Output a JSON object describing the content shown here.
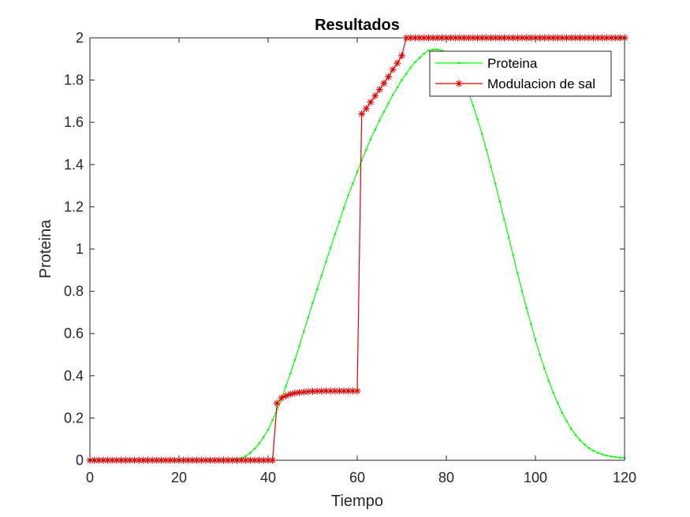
{
  "chart_data": {
    "type": "line",
    "title": "Resultados",
    "xlabel": "Tiempo",
    "ylabel": "Proteina",
    "xlim": [
      0,
      120
    ],
    "ylim": [
      0,
      2
    ],
    "xticks": [
      0,
      20,
      40,
      60,
      80,
      100,
      120
    ],
    "yticks": [
      0,
      0.2,
      0.4,
      0.6,
      0.8,
      1,
      1.2,
      1.4,
      1.6,
      1.8,
      2
    ],
    "xtick_labels": [
      "0",
      "20",
      "40",
      "60",
      "80",
      "100",
      "120"
    ],
    "ytick_labels": [
      "0",
      "0.2",
      "0.4",
      "0.6",
      "0.8",
      "1",
      "1.2",
      "1.4",
      "1.6",
      "1.8",
      "2"
    ],
    "grid": false,
    "legend_position": "top-right",
    "series": [
      {
        "name": "Proteina",
        "color": "#00ff00",
        "marker": "dot",
        "x": [
          0,
          1,
          2,
          3,
          4,
          5,
          6,
          7,
          8,
          9,
          10,
          11,
          12,
          13,
          14,
          15,
          16,
          17,
          18,
          19,
          20,
          21,
          22,
          23,
          24,
          25,
          26,
          27,
          28,
          29,
          30,
          31,
          32,
          33,
          34,
          35,
          36,
          37,
          38,
          39,
          40,
          41,
          42,
          43,
          44,
          45,
          46,
          47,
          48,
          49,
          50,
          51,
          52,
          53,
          54,
          55,
          56,
          57,
          58,
          59,
          60,
          61,
          62,
          63,
          64,
          65,
          66,
          67,
          68,
          69,
          70,
          71,
          72,
          73,
          74,
          75,
          76,
          77,
          78,
          79,
          80,
          81,
          82,
          83,
          84,
          85,
          86,
          87,
          88,
          89,
          90,
          91,
          92,
          93,
          94,
          95,
          96,
          97,
          98,
          99,
          100,
          101,
          102,
          103,
          104,
          105,
          106,
          107,
          108,
          109,
          110,
          111,
          112,
          113,
          114,
          115,
          116,
          117,
          118,
          119,
          120
        ],
        "y": [
          0,
          0,
          0,
          0,
          0,
          0,
          0,
          0,
          0,
          0,
          0,
          0,
          0,
          0,
          0,
          0,
          0,
          0,
          0,
          0,
          0,
          0,
          0,
          0,
          0,
          0,
          0,
          0,
          0,
          0,
          0,
          0,
          0.002,
          0.005,
          0.01,
          0.02,
          0.035,
          0.055,
          0.08,
          0.11,
          0.145,
          0.19,
          0.24,
          0.29,
          0.35,
          0.41,
          0.475,
          0.54,
          0.61,
          0.675,
          0.745,
          0.81,
          0.875,
          0.94,
          1.005,
          1.07,
          1.13,
          1.195,
          1.255,
          1.31,
          1.365,
          1.42,
          1.47,
          1.52,
          1.565,
          1.61,
          1.65,
          1.69,
          1.73,
          1.765,
          1.8,
          1.83,
          1.86,
          1.885,
          1.905,
          1.925,
          1.94,
          1.945,
          1.945,
          1.94,
          1.925,
          1.905,
          1.875,
          1.84,
          1.795,
          1.74,
          1.68,
          1.615,
          1.545,
          1.47,
          1.39,
          1.31,
          1.225,
          1.14,
          1.055,
          0.97,
          0.885,
          0.8,
          0.72,
          0.645,
          0.57,
          0.5,
          0.435,
          0.375,
          0.32,
          0.27,
          0.225,
          0.185,
          0.15,
          0.12,
          0.095,
          0.075,
          0.058,
          0.045,
          0.035,
          0.028,
          0.022,
          0.018,
          0.015,
          0.013,
          0.012
        ]
      },
      {
        "name": "Modulacion de sal",
        "color": "#e00000",
        "marker": "asterisk",
        "x": [
          0,
          1,
          2,
          3,
          4,
          5,
          6,
          7,
          8,
          9,
          10,
          11,
          12,
          13,
          14,
          15,
          16,
          17,
          18,
          19,
          20,
          21,
          22,
          23,
          24,
          25,
          26,
          27,
          28,
          29,
          30,
          31,
          32,
          33,
          34,
          35,
          36,
          37,
          38,
          39,
          40,
          41,
          42,
          43,
          44,
          45,
          46,
          47,
          48,
          49,
          50,
          51,
          52,
          53,
          54,
          55,
          56,
          57,
          58,
          59,
          60,
          61,
          62,
          63,
          64,
          65,
          66,
          67,
          68,
          69,
          70,
          71,
          72,
          73,
          74,
          75,
          76,
          77,
          78,
          79,
          80,
          81,
          82,
          83,
          84,
          85,
          86,
          87,
          88,
          89,
          90,
          91,
          92,
          93,
          94,
          95,
          96,
          97,
          98,
          99,
          100,
          101,
          102,
          103,
          104,
          105,
          106,
          107,
          108,
          109,
          110,
          111,
          112,
          113,
          114,
          115,
          116,
          117,
          118,
          119,
          120
        ],
        "y": [
          0,
          0,
          0,
          0,
          0,
          0,
          0,
          0,
          0,
          0,
          0,
          0,
          0,
          0,
          0,
          0,
          0,
          0,
          0,
          0,
          0,
          0,
          0,
          0,
          0,
          0,
          0,
          0,
          0,
          0,
          0,
          0,
          0,
          0,
          0,
          0,
          0,
          0,
          0,
          0,
          0,
          0,
          0.27,
          0.295,
          0.305,
          0.313,
          0.318,
          0.321,
          0.323,
          0.325,
          0.326,
          0.327,
          0.327,
          0.328,
          0.328,
          0.328,
          0.328,
          0.328,
          0.328,
          0.328,
          0.328,
          1.64,
          1.665,
          1.695,
          1.725,
          1.755,
          1.785,
          1.815,
          1.85,
          1.88,
          1.915,
          2,
          2,
          2,
          2,
          2,
          2,
          2,
          2,
          2,
          2,
          2,
          2,
          2,
          2,
          2,
          2,
          2,
          2,
          2,
          2,
          2,
          2,
          2,
          2,
          2,
          2,
          2,
          2,
          2,
          2,
          2,
          2,
          2,
          2,
          2,
          2,
          2,
          2,
          2,
          2,
          2,
          2,
          2,
          2,
          2,
          2,
          2,
          2,
          2,
          2
        ]
      }
    ]
  }
}
